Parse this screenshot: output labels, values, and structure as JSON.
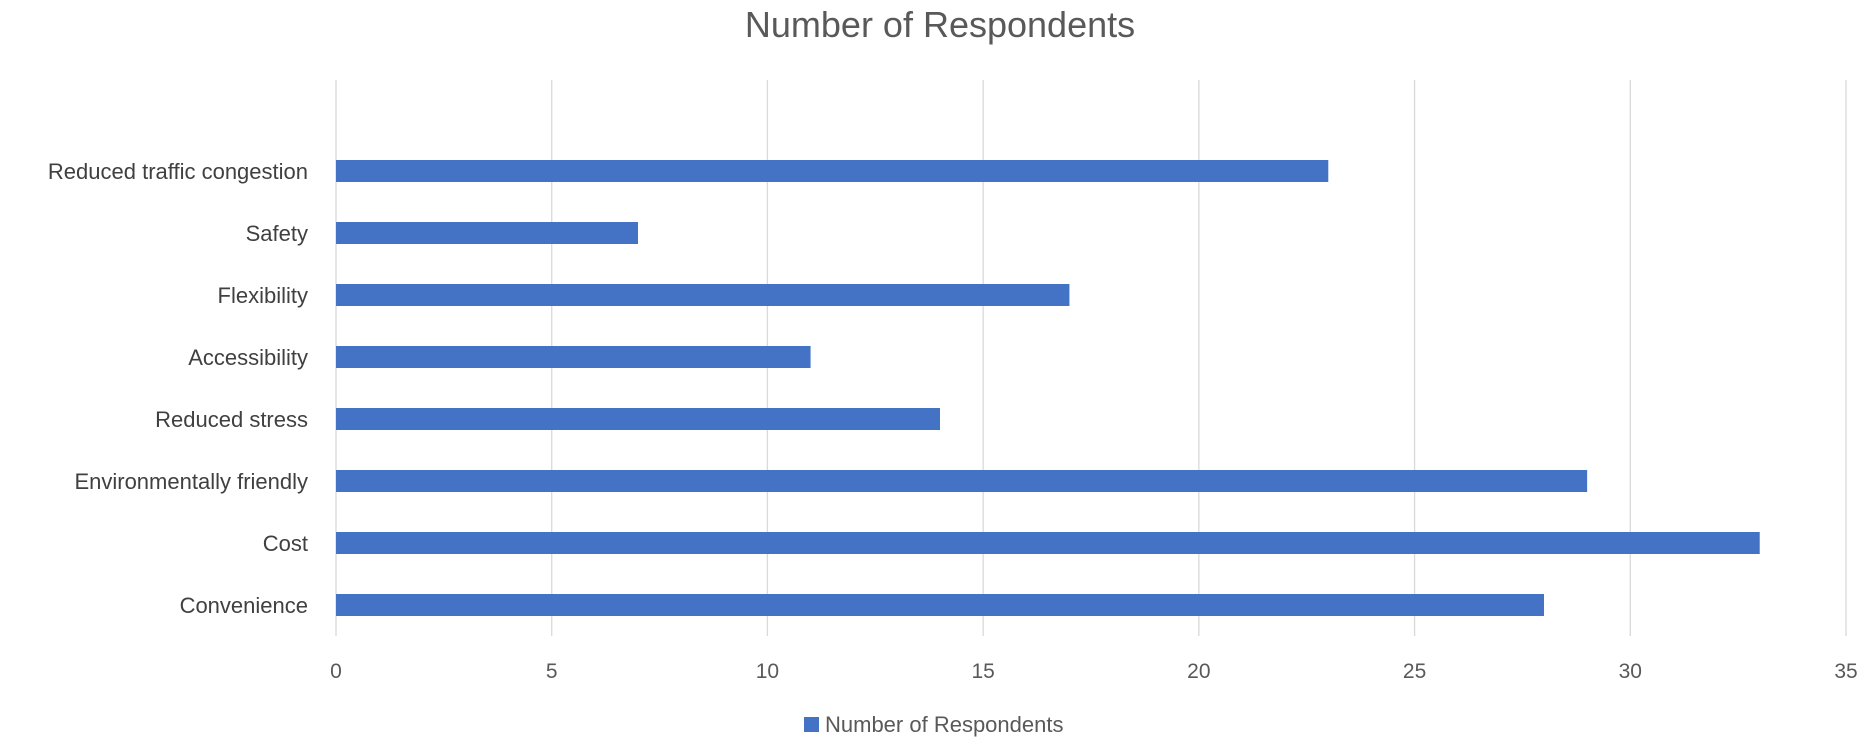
{
  "chart_data": {
    "type": "bar",
    "orientation": "horizontal",
    "title": "Number of Respondents",
    "categories": [
      "Convenience",
      "Cost",
      "Environmentally friendly",
      "Reduced stress",
      "Accessibility",
      "Flexibility",
      "Safety",
      "Reduced traffic congestion"
    ],
    "series": [
      {
        "name": "Number of Respondents",
        "values": [
          28,
          33,
          29,
          14,
          11,
          17,
          7,
          23
        ],
        "color": "#4472c4"
      }
    ],
    "xlim": [
      0,
      35
    ],
    "xticks": [
      "0",
      "5",
      "10",
      "15",
      "20",
      "25",
      "30",
      "35"
    ],
    "xlabel": "",
    "ylabel": "",
    "grid": "vertical",
    "legend": "bottom-center"
  }
}
